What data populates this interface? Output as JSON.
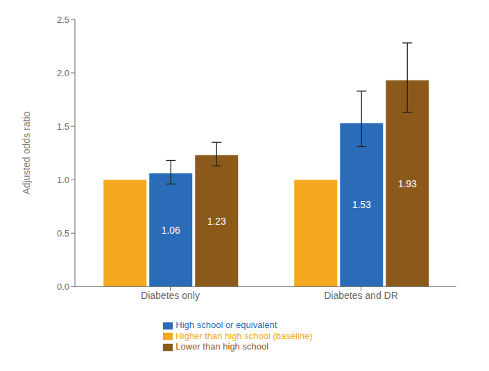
{
  "chart_data": {
    "type": "bar",
    "categories": [
      "Diabetes only",
      "Diabetes and DR"
    ],
    "series": [
      {
        "name": "Higher than high school (baseline)",
        "color": "#F5A820",
        "values": [
          1.0,
          1.0
        ],
        "errors_low": [
          0.0,
          0.0
        ],
        "errors_high": [
          0.0,
          0.0
        ],
        "value_labels": [
          null,
          null
        ]
      },
      {
        "name": "High school or equivalent",
        "color": "#2B6CB8",
        "values": [
          1.06,
          1.53
        ],
        "errors_low": [
          0.1,
          0.22
        ],
        "errors_high": [
          0.12,
          0.3
        ],
        "value_labels": [
          "1.06",
          "1.53"
        ]
      },
      {
        "name": "Lower than high school",
        "color": "#8B5A1A",
        "values": [
          1.23,
          1.93
        ],
        "errors_low": [
          0.1,
          0.3
        ],
        "errors_high": [
          0.12,
          0.35
        ],
        "value_labels": [
          "1.23",
          "1.93"
        ]
      }
    ],
    "ylabel": "Adjusted odds ratio",
    "ylim": [
      0,
      2.5
    ],
    "yticks": [
      {
        "value": 0,
        "label": "0.0"
      },
      {
        "value": 0.5,
        "label": "0.5"
      },
      {
        "value": 1,
        "label": "1.0"
      },
      {
        "value": 1.5,
        "label": "1.5"
      },
      {
        "value": 2,
        "label": "2.0"
      },
      {
        "value": 2.5,
        "label": "2.5"
      }
    ],
    "grid": false,
    "legend": "bottom"
  }
}
